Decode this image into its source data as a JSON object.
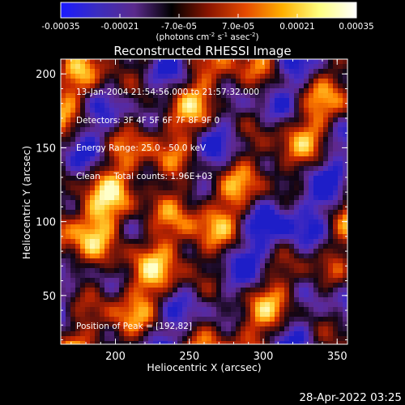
{
  "colors": {
    "background": "#000000",
    "text": "#ffffff",
    "axes": "#ffffff"
  },
  "colorbar": {
    "tick_labels": [
      "-0.00035",
      "-0.00021",
      "-7.0e-05",
      "7.0e-05",
      "0.00021",
      "0.00035"
    ],
    "units": {
      "a": "(photons cm",
      "b": "-2",
      "c": " s",
      "d": "-1",
      "e": " asec",
      "f": "-2",
      "g": ")"
    },
    "stops": [
      "#1a1aff",
      "#3b2dbf",
      "#5b2a8c",
      "#000000",
      "#8a1500",
      "#e64a00",
      "#ffb000",
      "#ffff80",
      "#ffffff"
    ]
  },
  "image_info": {
    "time": "13-Jan-2004 21:54:56.000 to 21:57:32.000",
    "detectors": "Detectors: 3F 4F 5F 6F 7F 8F 9F 0",
    "energy": "Energy Range: 25.0 - 50.0 keV",
    "clean": "Clean     Total counts: 1.96E+03",
    "peak": "Position of Peak = [192,82]"
  },
  "timestamp": "28-Apr-2022 03:25",
  "chart_data": {
    "type": "heatmap",
    "title": "Reconstructed RHESSI Image",
    "xlabel": "Heliocentric X (arcsec)",
    "ylabel": "Heliocentric Y (arcsec)",
    "xlim": [
      163,
      357
    ],
    "ylim": [
      17,
      210
    ],
    "xticks": [
      200,
      250,
      300,
      350
    ],
    "yticks": [
      50,
      100,
      150,
      200
    ],
    "colorbar_range": [
      -0.00035,
      0.00035
    ],
    "peak": [
      192,
      82
    ],
    "grid": false
  }
}
